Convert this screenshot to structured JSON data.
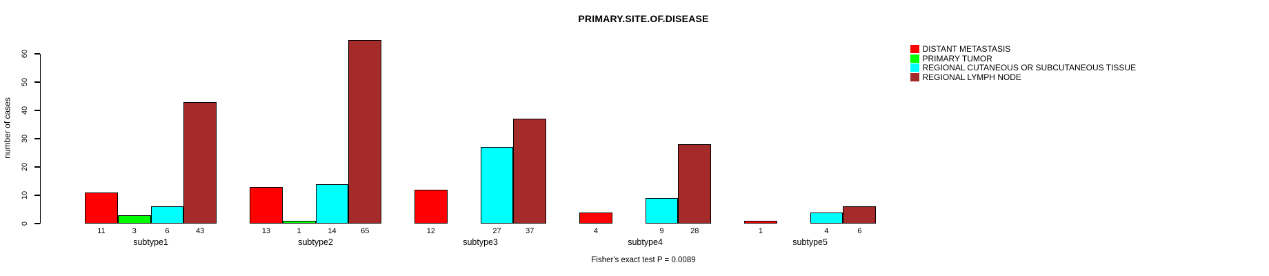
{
  "title": "PRIMARY.SITE.OF.DISEASE",
  "ylabel": "number of cases",
  "footer": "Fisher's exact test P = 0.0089",
  "colors": {
    "distant_metastasis": "#ff0000",
    "primary_tumor": "#00ff00",
    "regional_cutaneous": "#00ffff",
    "regional_lymph_node": "#a52a2a",
    "axis": "#000000"
  },
  "legend": {
    "position": "right",
    "items": [
      {
        "label": "DISTANT METASTASIS",
        "color": "#ff0000"
      },
      {
        "label": "PRIMARY TUMOR",
        "color": "#00ff00"
      },
      {
        "label": "REGIONAL CUTANEOUS OR SUBCUTANEOUS TISSUE",
        "color": "#00ffff"
      },
      {
        "label": "REGIONAL LYMPH NODE",
        "color": "#a52a2a"
      }
    ]
  },
  "chart_data": {
    "type": "bar",
    "title": "PRIMARY.SITE.OF.DISEASE",
    "categories": [
      "subtype1",
      "subtype2",
      "subtype3",
      "subtype4",
      "subtype5"
    ],
    "series": [
      {
        "name": "DISTANT METASTASIS",
        "color": "#ff0000",
        "values": [
          11,
          13,
          12,
          4,
          1
        ]
      },
      {
        "name": "PRIMARY TUMOR",
        "color": "#00ff00",
        "values": [
          3,
          1,
          0,
          0,
          0
        ]
      },
      {
        "name": "REGIONAL CUTANEOUS OR SUBCUTANEOUS TISSUE",
        "color": "#00ffff",
        "values": [
          6,
          14,
          27,
          9,
          4
        ]
      },
      {
        "name": "REGIONAL LYMPH NODE",
        "color": "#a52a2a",
        "values": [
          43,
          65,
          37,
          28,
          6
        ]
      }
    ],
    "bar_value_labels_shown": true,
    "zero_value_labels_hidden": true,
    "xlabel": "",
    "ylabel": "number of cases",
    "yticks": [
      0,
      10,
      20,
      30,
      40,
      50,
      60
    ],
    "ylim": [
      0,
      65
    ],
    "grid": false,
    "legend_position": "right",
    "annotation": "Fisher's exact test P = 0.0089"
  }
}
